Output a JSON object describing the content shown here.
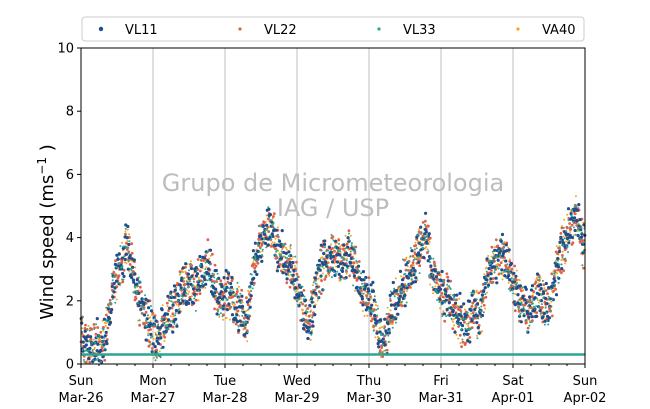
{
  "chart_data": {
    "type": "scatter",
    "ylabel": "Wind speed (ms",
    "ylabel_exp": "−1",
    "ylabel_close": " )",
    "ylim": [
      0,
      10
    ],
    "yticks": [
      "0",
      "2",
      "4",
      "6",
      "8",
      "10"
    ],
    "xlim": [
      "2023-03-26",
      "2023-04-02"
    ],
    "xticks": [
      {
        "day": "Sun",
        "date": "Mar-26"
      },
      {
        "day": "Mon",
        "date": "Mar-27"
      },
      {
        "day": "Tue",
        "date": "Mar-28"
      },
      {
        "day": "Wed",
        "date": "Mar-29"
      },
      {
        "day": "Thu",
        "date": "Mar-30"
      },
      {
        "day": "Fri",
        "date": "Mar-31"
      },
      {
        "day": "Sat",
        "date": "Apr-01"
      },
      {
        "day": "Sun",
        "date": "Apr-02"
      }
    ],
    "grid": "vertical at day ticks",
    "legend_position": "top",
    "watermark": [
      "Grupo de Micrometeorologia",
      "IAG / USP"
    ],
    "series": [
      {
        "name": "VL11",
        "color": "#1f4e8c"
      },
      {
        "name": "VL22",
        "color": "#e0604a"
      },
      {
        "name": "VL33",
        "color": "#2ca58d"
      },
      {
        "name": "VA40",
        "color": "#f5a623"
      }
    ],
    "hourly_mean": [
      0.9,
      0.7,
      0.6,
      0.6,
      0.5,
      0.6,
      0.6,
      0.7,
      0.9,
      1.5,
      2.2,
      2.6,
      2.8,
      3.0,
      3.3,
      3.8,
      3.6,
      3.1,
      2.6,
      2.1,
      1.8,
      1.6,
      1.4,
      1.3,
      1.0,
      0.8,
      0.7,
      1.0,
      1.3,
      1.5,
      1.7,
      1.8,
      2.0,
      2.3,
      2.5,
      2.6,
      2.5,
      2.4,
      2.4,
      2.6,
      2.8,
      3.0,
      3.2,
      3.0,
      2.6,
      2.3,
      2.1,
      2.0,
      2.2,
      2.3,
      2.1,
      1.9,
      1.8,
      1.7,
      1.5,
      1.4,
      1.7,
      2.6,
      3.2,
      3.6,
      3.8,
      4.0,
      4.2,
      4.4,
      4.1,
      3.8,
      3.6,
      3.4,
      3.3,
      3.1,
      3.0,
      2.9,
      2.6,
      2.2,
      1.8,
      1.4,
      1.3,
      1.7,
      2.3,
      2.8,
      3.0,
      3.2,
      3.2,
      3.3,
      3.4,
      3.5,
      3.4,
      3.3,
      3.4,
      3.6,
      3.3,
      3.1,
      2.9,
      2.6,
      2.3,
      2.2,
      2.0,
      1.9,
      1.6,
      1.2,
      0.8,
      0.7,
      1.0,
      1.5,
      1.8,
      2.0,
      2.2,
      2.5,
      2.6,
      2.8,
      3.0,
      3.2,
      3.4,
      3.6,
      3.9,
      4.0,
      3.5,
      3.0,
      2.7,
      2.5,
      2.3,
      2.2,
      2.1,
      2.0,
      1.8,
      1.6,
      1.5,
      1.2,
      1.1,
      1.3,
      1.6,
      1.8,
      1.6,
      1.5,
      2.0,
      2.5,
      2.8,
      3.0,
      3.2,
      3.4,
      3.5,
      3.4,
      3.2,
      2.9,
      2.5,
      2.2,
      2.0,
      1.9,
      1.8,
      1.7,
      1.8,
      2.0,
      2.2,
      2.3,
      2.0,
      1.8,
      1.7,
      2.2,
      2.7,
      3.2,
      3.5,
      3.8,
      4.0,
      4.3,
      4.5,
      4.7,
      4.4,
      4.0,
      3.6,
      3.2,
      2.9,
      2.7,
      2.5,
      2.3,
      2.1,
      1.7,
      1.3,
      1.1,
      1.2
    ],
    "baseline": {
      "series": "VL33",
      "value": 0.3
    }
  }
}
